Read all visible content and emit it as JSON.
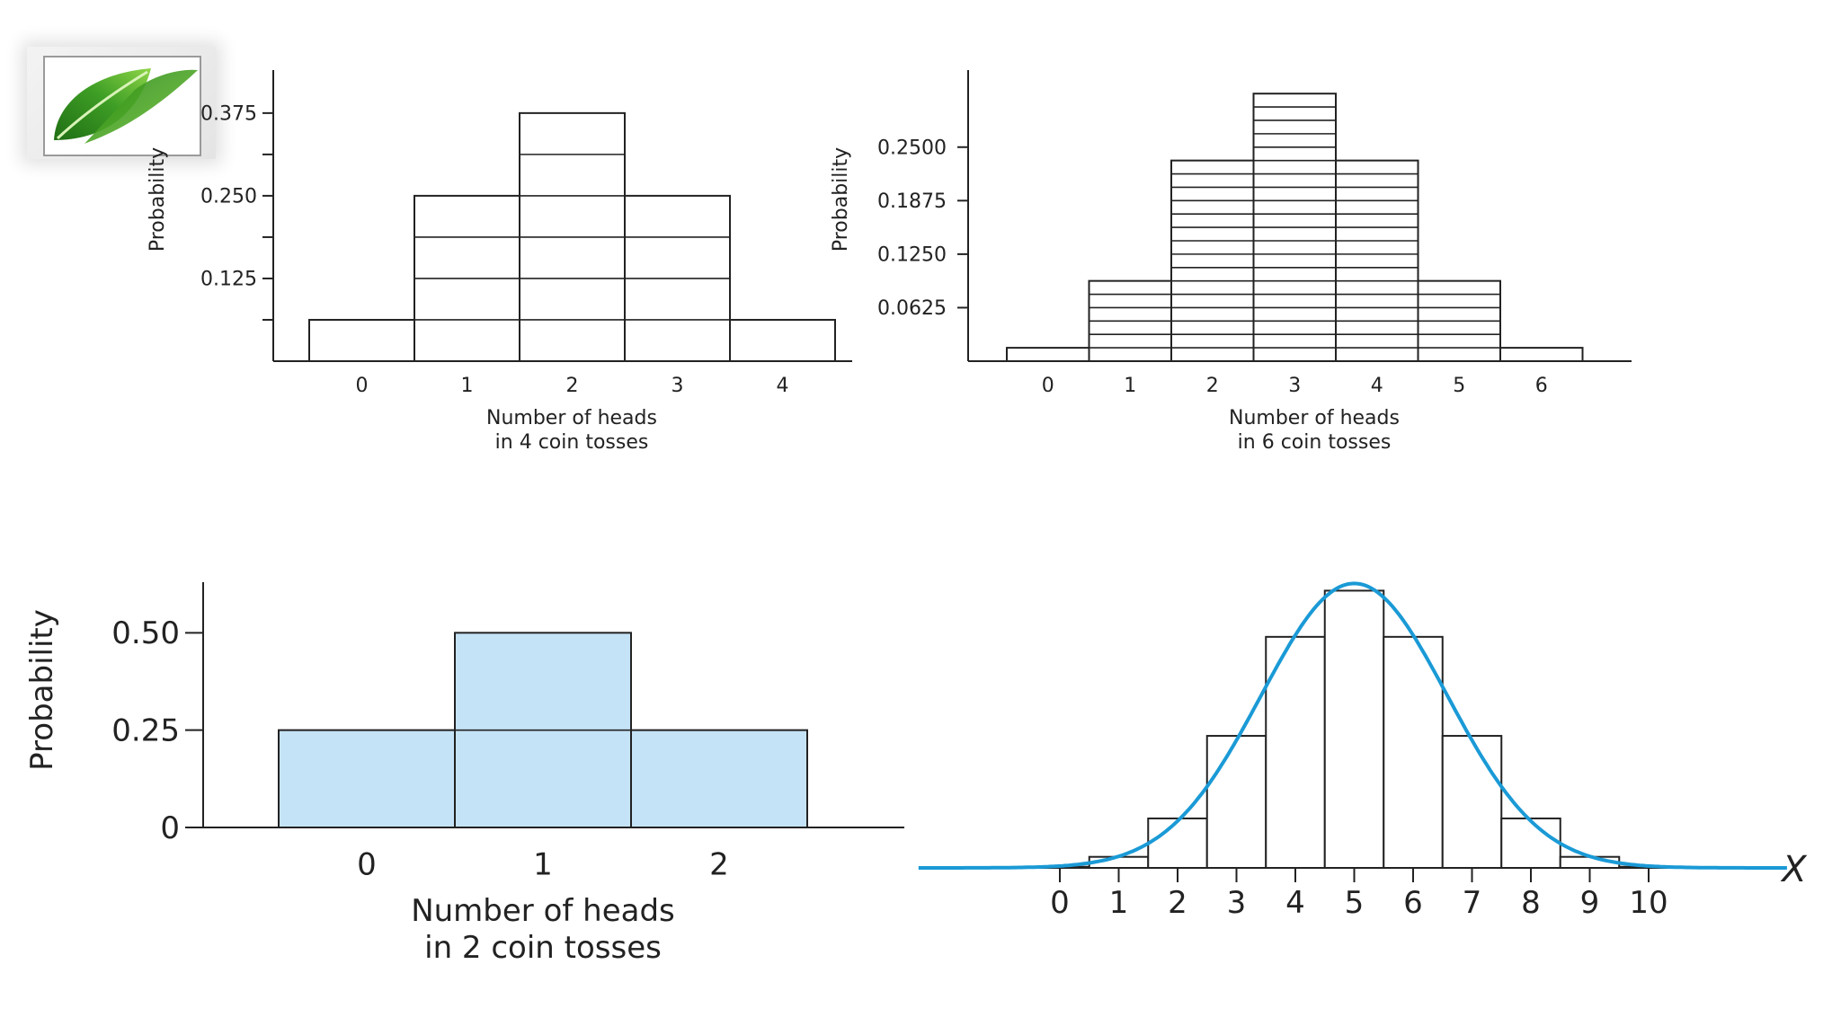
{
  "colors": {
    "axis": "#222222",
    "bar_fill_plain": "#ffffff",
    "bar_fill_blue": "#c5e3f6",
    "curve": "#1a9ad6",
    "logo_leaf_dark": "#2e8b1f",
    "logo_leaf_light": "#7ccc3c"
  },
  "logo": {
    "icon": "leaf-icon"
  },
  "chart_data": [
    {
      "id": "four_tosses",
      "type": "bar",
      "categories": [
        "0",
        "1",
        "2",
        "3",
        "4"
      ],
      "values": [
        0.0625,
        0.25,
        0.375,
        0.25,
        0.0625
      ],
      "unit_step": 0.0625,
      "yticks": [
        0.125,
        0.25,
        0.375
      ],
      "ytick_labels": [
        "0.125",
        "0.250",
        "0.375"
      ],
      "ylim": [
        0,
        0.44
      ],
      "ylabel": "Probability",
      "xlabel_lines": [
        "Number of heads",
        "in 4 coin tosses"
      ]
    },
    {
      "id": "six_tosses",
      "type": "bar",
      "categories": [
        "0",
        "1",
        "2",
        "3",
        "4",
        "5",
        "6"
      ],
      "values": [
        0.015625,
        0.09375,
        0.234375,
        0.3125,
        0.234375,
        0.09375,
        0.015625
      ],
      "unit_step": 0.015625,
      "yticks": [
        0.0625,
        0.125,
        0.1875,
        0.25
      ],
      "ytick_labels": [
        "0.0625",
        "0.1250",
        "0.1875",
        "0.2500"
      ],
      "ylim": [
        0,
        0.34
      ],
      "ylabel": "Probability",
      "xlabel_lines": [
        "Number of heads",
        "in 6 coin tosses"
      ]
    },
    {
      "id": "two_tosses",
      "type": "bar",
      "categories": [
        "0",
        "1",
        "2"
      ],
      "values": [
        0.25,
        0.5,
        0.25
      ],
      "unit_step": 0.25,
      "yticks": [
        0,
        0.25,
        0.5
      ],
      "ytick_labels": [
        "0",
        "0.25",
        "0.50"
      ],
      "ylim": [
        0,
        0.63
      ],
      "ylabel": "Probability",
      "xlabel_lines": [
        "Number of heads",
        "in 2 coin tosses"
      ]
    },
    {
      "id": "ten_tosses",
      "type": "bar",
      "categories": [
        "0",
        "1",
        "2",
        "3",
        "4",
        "5",
        "6",
        "7",
        "8",
        "9",
        "10"
      ],
      "values": [
        0.001,
        0.0098,
        0.0439,
        0.1172,
        0.2051,
        0.2461,
        0.2051,
        0.1172,
        0.0439,
        0.0098,
        0.001
      ],
      "ylim": [
        0,
        0.26
      ],
      "curve": {
        "type": "normal",
        "mean": 5,
        "sd": 1.58
      },
      "xlabel": "X"
    }
  ]
}
